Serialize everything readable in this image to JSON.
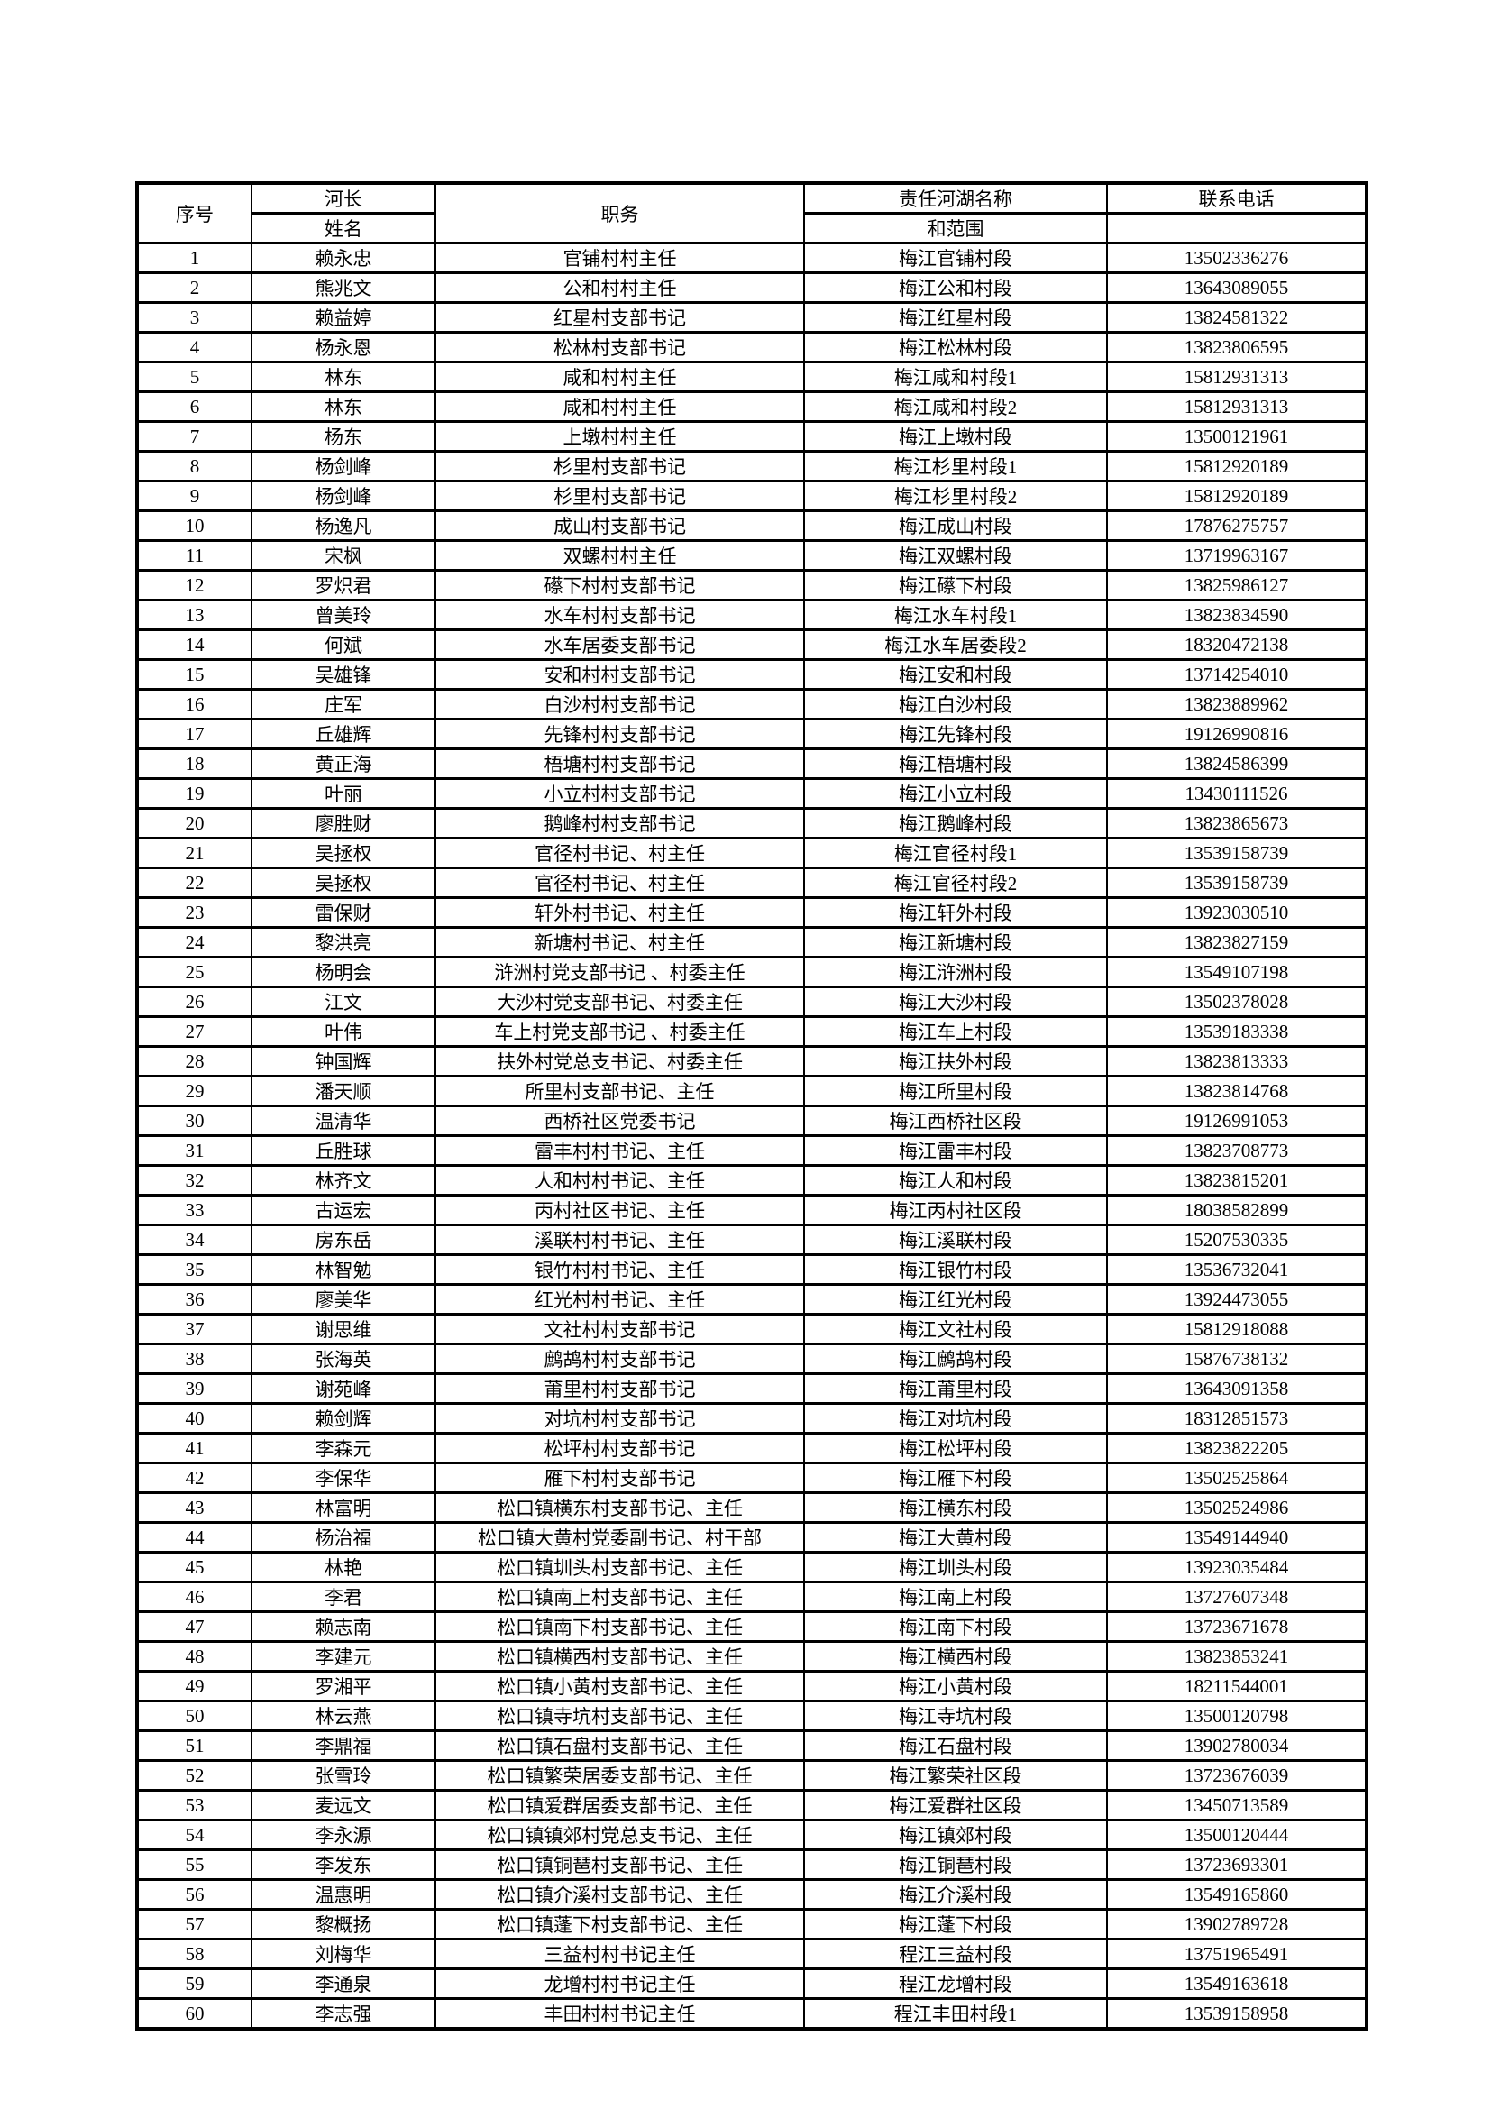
{
  "document": {
    "background_color": "#ffffff",
    "text_color": "#000000",
    "grid_color": "#000000"
  },
  "table": {
    "headers": {
      "index": "序号",
      "chief": "河长",
      "name": "姓名",
      "position": "职务",
      "river_name": "责任河湖名称",
      "scope": "和范围",
      "phone": "联系电话"
    },
    "rows": [
      [
        "1",
        "赖永忠",
        "官铺村村主任",
        "梅江官铺村段",
        "13502336276"
      ],
      [
        "2",
        "熊兆文",
        "公和村村主任",
        "梅江公和村段",
        "13643089055"
      ],
      [
        "3",
        "赖益婷",
        "红星村支部书记",
        "梅江红星村段",
        "13824581322"
      ],
      [
        "4",
        "杨永恩",
        "松林村支部书记",
        "梅江松林村段",
        "13823806595"
      ],
      [
        "5",
        "林东",
        "咸和村村主任",
        "梅江咸和村段1",
        "15812931313"
      ],
      [
        "6",
        "林东",
        "咸和村村主任",
        "梅江咸和村段2",
        "15812931313"
      ],
      [
        "7",
        "杨东",
        "上墩村村主任",
        "梅江上墩村段",
        "13500121961"
      ],
      [
        "8",
        "杨剑峰",
        "杉里村支部书记",
        "梅江杉里村段1",
        "15812920189"
      ],
      [
        "9",
        "杨剑峰",
        "杉里村支部书记",
        "梅江杉里村段2",
        "15812920189"
      ],
      [
        "10",
        "杨逸凡",
        "成山村支部书记",
        "梅江成山村段",
        "17876275757"
      ],
      [
        "11",
        "宋枫",
        "双螺村村主任",
        "梅江双螺村段",
        "13719963167"
      ],
      [
        "12",
        "罗炽君",
        "礤下村村支部书记",
        "梅江礤下村段",
        "13825986127"
      ],
      [
        "13",
        "曾美玲",
        "水车村村支部书记",
        "梅江水车村段1",
        "13823834590"
      ],
      [
        "14",
        "何斌",
        "水车居委支部书记",
        "梅江水车居委段2",
        "18320472138"
      ],
      [
        "15",
        "吴雄锋",
        "安和村村支部书记",
        "梅江安和村段",
        "13714254010"
      ],
      [
        "16",
        "庄军",
        "白沙村村支部书记",
        "梅江白沙村段",
        "13823889962"
      ],
      [
        "17",
        "丘雄辉",
        "先锋村村支部书记",
        "梅江先锋村段",
        "19126990816"
      ],
      [
        "18",
        "黄正海",
        "梧塘村村支部书记",
        "梅江梧塘村段",
        "13824586399"
      ],
      [
        "19",
        "叶丽",
        "小立村村支部书记",
        "梅江小立村段",
        "13430111526"
      ],
      [
        "20",
        "廖胜财",
        "鹅峰村村支部书记",
        "梅江鹅峰村段",
        "13823865673"
      ],
      [
        "21",
        "吴拯权",
        "官径村书记、村主任",
        "梅江官径村段1",
        "13539158739"
      ],
      [
        "22",
        "吴拯权",
        "官径村书记、村主任",
        "梅江官径村段2",
        "13539158739"
      ],
      [
        "23",
        "雷保财",
        "轩外村书记、村主任",
        "梅江轩外村段",
        "13923030510"
      ],
      [
        "24",
        "黎洪亮",
        "新塘村书记、村主任",
        "梅江新塘村段",
        "13823827159"
      ],
      [
        "25",
        "杨明会",
        "浒洲村党支部书记 、村委主任",
        "梅江浒洲村段",
        "13549107198"
      ],
      [
        "26",
        "江文",
        "大沙村党支部书记、村委主任",
        "梅江大沙村段",
        "13502378028"
      ],
      [
        "27",
        "叶伟",
        "车上村党支部书记 、村委主任",
        "梅江车上村段",
        "13539183338"
      ],
      [
        "28",
        "钟国辉",
        "扶外村党总支书记、村委主任",
        "梅江扶外村段",
        "13823813333"
      ],
      [
        "29",
        "潘天顺",
        "所里村支部书记、主任",
        "梅江所里村段",
        "13823814768"
      ],
      [
        "30",
        "温清华",
        "西桥社区党委书记",
        "梅江西桥社区段",
        "19126991053"
      ],
      [
        "31",
        "丘胜球",
        "雷丰村村书记、主任",
        "梅江雷丰村段",
        "13823708773"
      ],
      [
        "32",
        "林齐文",
        "人和村村书记、主任",
        "梅江人和村段",
        "13823815201"
      ],
      [
        "33",
        "古运宏",
        "丙村社区书记、主任",
        "梅江丙村社区段",
        "18038582899"
      ],
      [
        "34",
        "房东岳",
        "溪联村村书记、主任",
        "梅江溪联村段",
        "15207530335"
      ],
      [
        "35",
        "林智勉",
        "银竹村村书记、主任",
        "梅江银竹村段",
        "13536732041"
      ],
      [
        "36",
        "廖美华",
        "红光村村书记、主任",
        "梅江红光村段",
        "13924473055"
      ],
      [
        "37",
        "谢思维",
        "文社村村支部书记",
        "梅江文社村段",
        "15812918088"
      ],
      [
        "38",
        "张海英",
        "鹧鸪村村支部书记",
        "梅江鹧鸪村段",
        "15876738132"
      ],
      [
        "39",
        "谢苑峰",
        "莆里村村支部书记",
        "梅江莆里村段",
        "13643091358"
      ],
      [
        "40",
        "赖剑辉",
        "对坑村村支部书记",
        "梅江对坑村段",
        "18312851573"
      ],
      [
        "41",
        "李森元",
        "松坪村村支部书记",
        "梅江松坪村段",
        "13823822205"
      ],
      [
        "42",
        "李保华",
        "雁下村村支部书记",
        "梅江雁下村段",
        "13502525864"
      ],
      [
        "43",
        "林富明",
        "松口镇横东村支部书记、主任",
        "梅江横东村段",
        "13502524986"
      ],
      [
        "44",
        "杨治福",
        "松口镇大黄村党委副书记、村干部",
        "梅江大黄村段",
        "13549144940"
      ],
      [
        "45",
        "林艳",
        "松口镇圳头村支部书记、主任",
        "梅江圳头村段",
        "13923035484"
      ],
      [
        "46",
        "李君",
        "松口镇南上村支部书记、主任",
        "梅江南上村段",
        "13727607348"
      ],
      [
        "47",
        "赖志南",
        "松口镇南下村支部书记、主任",
        "梅江南下村段",
        "13723671678"
      ],
      [
        "48",
        "李建元",
        "松口镇横西村支部书记、主任",
        "梅江横西村段",
        "13823853241"
      ],
      [
        "49",
        "罗湘平",
        "松口镇小黄村支部书记、主任",
        "梅江小黄村段",
        "18211544001"
      ],
      [
        "50",
        "林云燕",
        "松口镇寺坑村支部书记、主任",
        "梅江寺坑村段",
        "13500120798"
      ],
      [
        "51",
        "李鼎福",
        "松口镇石盘村支部书记、主任",
        "梅江石盘村段",
        "13902780034"
      ],
      [
        "52",
        "张雪玲",
        "松口镇繁荣居委支部书记、主任",
        "梅江繁荣社区段",
        "13723676039"
      ],
      [
        "53",
        "麦远文",
        "松口镇爱群居委支部书记、主任",
        "梅江爱群社区段",
        "13450713589"
      ],
      [
        "54",
        "李永源",
        "松口镇镇郊村党总支书记、主任",
        "梅江镇郊村段",
        "13500120444"
      ],
      [
        "55",
        "李发东",
        "松口镇铜琶村支部书记、主任",
        "梅江铜琶村段",
        "13723693301"
      ],
      [
        "56",
        "温惠明",
        "松口镇介溪村支部书记、主任",
        "梅江介溪村段",
        "13549165860"
      ],
      [
        "57",
        "黎概扬",
        "松口镇蓬下村支部书记、主任",
        "梅江蓬下村段",
        "13902789728"
      ],
      [
        "58",
        "刘梅华",
        "三益村村书记主任",
        "程江三益村段",
        "13751965491"
      ],
      [
        "59",
        "李通泉",
        "龙增村村书记主任",
        "程江龙增村段",
        "13549163618"
      ],
      [
        "60",
        "李志强",
        "丰田村村书记主任",
        "程江丰田村段1",
        "13539158958"
      ]
    ]
  }
}
